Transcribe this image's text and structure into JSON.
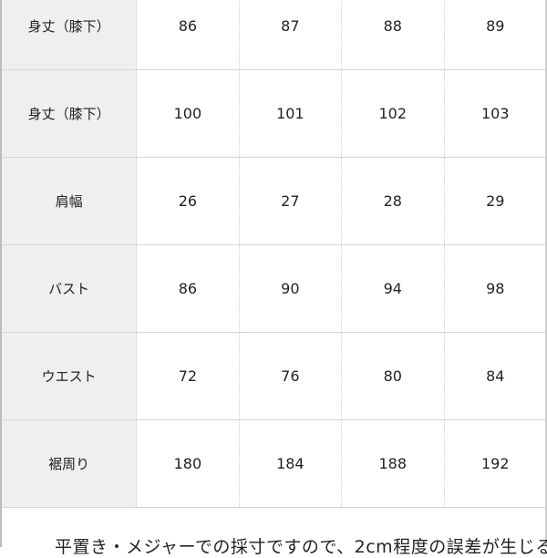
{
  "rows": [
    {
      "label": "身丈（膝下）",
      "values": [
        "86",
        "87",
        "88",
        "89"
      ]
    },
    {
      "label": "身丈（膝下）",
      "values": [
        "100",
        "101",
        "102",
        "103"
      ]
    },
    {
      "label": "肩幅",
      "values": [
        "26",
        "27",
        "28",
        "29"
      ]
    },
    {
      "label": "バスト",
      "values": [
        "86",
        "90",
        "94",
        "98"
      ]
    },
    {
      "label": "ウエスト",
      "values": [
        "72",
        "76",
        "80",
        "84"
      ]
    },
    {
      "label": "裾周り",
      "values": [
        "180",
        "184",
        "188",
        "192"
      ]
    }
  ],
  "note": "平置き・メジャーでの採寸ですので、2cm程度の誤差が生じる"
}
